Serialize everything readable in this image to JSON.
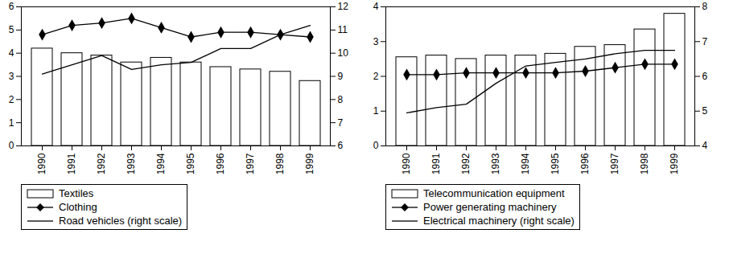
{
  "chart_data": [
    {
      "type": "bar_line",
      "categories": [
        "1990",
        "1991",
        "1992",
        "1993",
        "1994",
        "1995",
        "1996",
        "1997",
        "1998",
        "1999"
      ],
      "ylim": [
        0,
        6
      ],
      "yticks": [
        0,
        1,
        2,
        3,
        4,
        5,
        6
      ],
      "y2lim": [
        6,
        12
      ],
      "y2ticks": [
        6,
        7,
        8,
        9,
        10,
        11,
        12
      ],
      "series": [
        {
          "name": "Textiles",
          "type": "bar",
          "color": "#ffffff",
          "values": [
            4.2,
            4.0,
            3.9,
            3.6,
            3.8,
            3.6,
            3.4,
            3.3,
            3.2,
            2.8
          ]
        },
        {
          "name": "Clothing",
          "type": "line",
          "color": "#000000",
          "marker": "diamond",
          "values": [
            4.8,
            5.2,
            5.3,
            5.5,
            5.1,
            4.7,
            4.9,
            4.9,
            4.8,
            4.7
          ]
        },
        {
          "name": "Road vehicles (right scale)",
          "type": "line",
          "color": "#000000",
          "axis": "y2",
          "values": [
            9.1,
            9.5,
            9.9,
            9.3,
            9.5,
            9.6,
            10.2,
            10.2,
            10.8,
            11.2
          ]
        }
      ]
    },
    {
      "type": "bar_line",
      "categories": [
        "1990",
        "1991",
        "1992",
        "1993",
        "1994",
        "1995",
        "1996",
        "1997",
        "1998",
        "1999"
      ],
      "ylim": [
        0,
        4
      ],
      "yticks": [
        0,
        1,
        2,
        3,
        4
      ],
      "y2lim": [
        4,
        8
      ],
      "y2ticks": [
        4,
        5,
        6,
        7,
        8
      ],
      "series": [
        {
          "name": "Telecommunication equipment",
          "type": "bar",
          "color": "#ffffff",
          "values": [
            2.55,
            2.6,
            2.5,
            2.6,
            2.6,
            2.65,
            2.85,
            2.9,
            3.35,
            3.8
          ]
        },
        {
          "name": "Power generating machinery",
          "type": "line",
          "color": "#000000",
          "marker": "diamond",
          "values": [
            2.05,
            2.05,
            2.1,
            2.1,
            2.1,
            2.1,
            2.15,
            2.25,
            2.35,
            2.35
          ]
        },
        {
          "name": "Electrical machinery (right scale)",
          "type": "line",
          "color": "#000000",
          "axis": "y2",
          "values": [
            4.95,
            5.1,
            5.2,
            5.8,
            6.3,
            6.4,
            6.5,
            6.65,
            6.75,
            6.75
          ]
        }
      ]
    }
  ]
}
